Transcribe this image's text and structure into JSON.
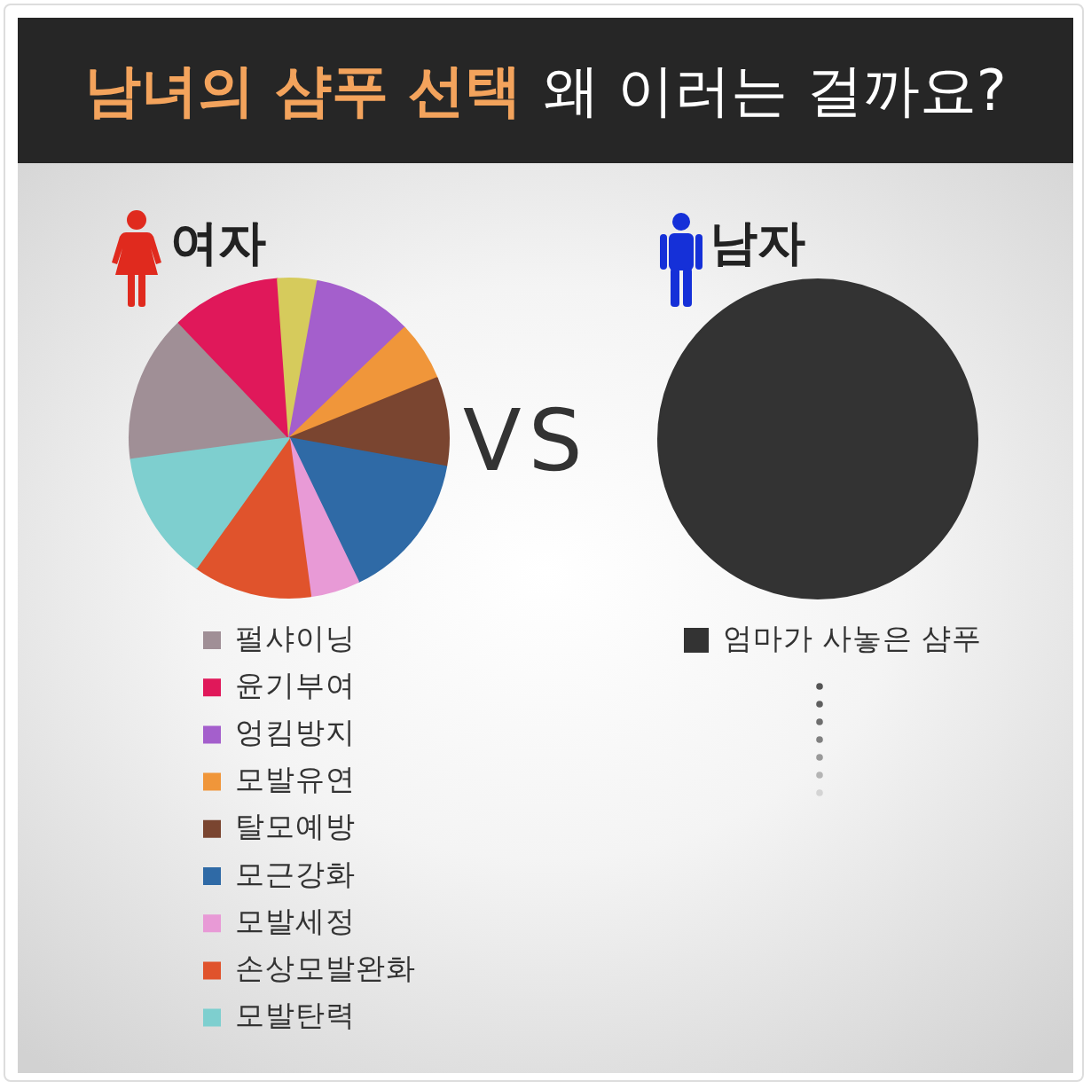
{
  "chart_data": [
    {
      "type": "other",
      "title": "남녀의 샴푸 선택",
      "subtitle": "왜 이러는 걸까요?",
      "annotations": [
        "VS"
      ]
    },
    {
      "type": "pie",
      "title": "여자",
      "categories": [
        "펄샤이닝",
        "윤기부여",
        null,
        "엉킴방지",
        "모발유연",
        "탈모예방",
        "모근강화",
        "모발세정",
        "손상모발완화",
        "모발탄력"
      ],
      "values": [
        15,
        11,
        4,
        10,
        6,
        9,
        15,
        5,
        12,
        13
      ],
      "colors": [
        "#a08f96",
        "#e0185a",
        "#d6cb5c",
        "#a45fcc",
        "#f0963a",
        "#7a4530",
        "#2f6aa6",
        "#e89ad6",
        "#e0532c",
        "#7ecfcf"
      ],
      "legend": "bottom"
    },
    {
      "type": "pie",
      "title": "남자",
      "categories": [
        "엄마가 사놓은 샴푸"
      ],
      "values": [
        100
      ],
      "colors": [
        "#333333"
      ],
      "legend": "bottom"
    }
  ]
}
